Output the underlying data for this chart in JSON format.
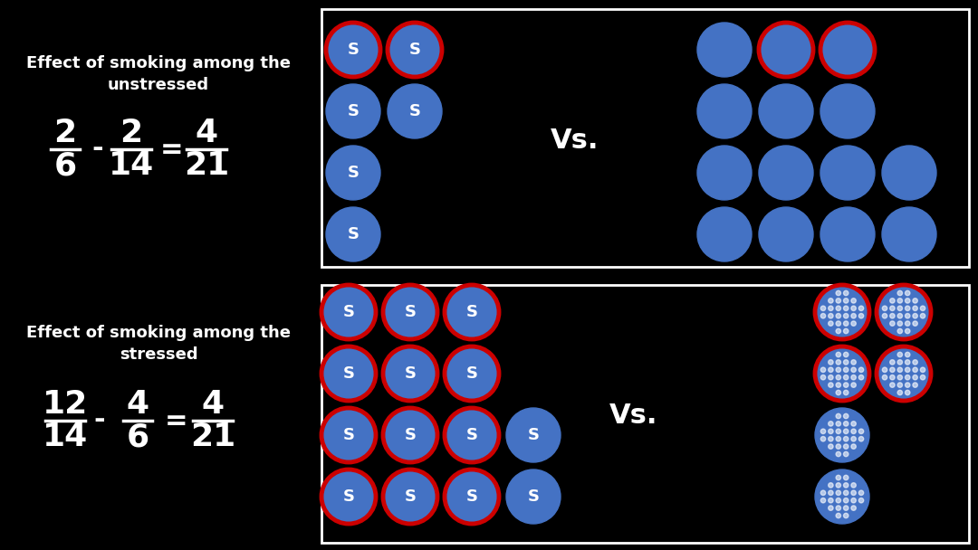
{
  "bg_color": "#000000",
  "panel_border_color": "#ffffff",
  "circle_blue": "#4472C4",
  "circle_red_outline": "#cc0000",
  "text_color": "#ffffff",
  "top_title": "Effect of smoking among the\nunstressed",
  "bottom_title": "Effect of smoking among the\nstressed",
  "vs_text": "Vs.",
  "top_left_smokers": [
    {
      "col": 0,
      "row": 0,
      "cancer": true
    },
    {
      "col": 1,
      "row": 0,
      "cancer": true
    },
    {
      "col": 0,
      "row": 1,
      "cancer": false
    },
    {
      "col": 1,
      "row": 1,
      "cancer": false
    },
    {
      "col": 0,
      "row": 2,
      "cancer": false
    },
    {
      "col": 0,
      "row": 3,
      "cancer": false
    }
  ],
  "top_right_nonsmokers": [
    {
      "col": 0,
      "row": 0,
      "cancer": false
    },
    {
      "col": 1,
      "row": 0,
      "cancer": true
    },
    {
      "col": 2,
      "row": 0,
      "cancer": true
    },
    {
      "col": 0,
      "row": 1,
      "cancer": false
    },
    {
      "col": 1,
      "row": 1,
      "cancer": false
    },
    {
      "col": 2,
      "row": 1,
      "cancer": false
    },
    {
      "col": 0,
      "row": 2,
      "cancer": false
    },
    {
      "col": 1,
      "row": 2,
      "cancer": false
    },
    {
      "col": 2,
      "row": 2,
      "cancer": false
    },
    {
      "col": 3,
      "row": 2,
      "cancer": false
    },
    {
      "col": 0,
      "row": 3,
      "cancer": false
    },
    {
      "col": 1,
      "row": 3,
      "cancer": false
    },
    {
      "col": 2,
      "row": 3,
      "cancer": false
    },
    {
      "col": 3,
      "row": 3,
      "cancer": false
    }
  ],
  "bot_left_smokers": [
    {
      "col": 0,
      "row": 0,
      "cancer": true
    },
    {
      "col": 1,
      "row": 0,
      "cancer": true
    },
    {
      "col": 2,
      "row": 0,
      "cancer": true
    },
    {
      "col": 0,
      "row": 1,
      "cancer": true
    },
    {
      "col": 1,
      "row": 1,
      "cancer": true
    },
    {
      "col": 2,
      "row": 1,
      "cancer": true
    },
    {
      "col": 0,
      "row": 2,
      "cancer": true
    },
    {
      "col": 1,
      "row": 2,
      "cancer": true
    },
    {
      "col": 2,
      "row": 2,
      "cancer": true
    },
    {
      "col": 3,
      "row": 2,
      "cancer": false
    },
    {
      "col": 0,
      "row": 3,
      "cancer": true
    },
    {
      "col": 1,
      "row": 3,
      "cancer": true
    },
    {
      "col": 2,
      "row": 3,
      "cancer": true
    },
    {
      "col": 3,
      "row": 3,
      "cancer": false
    }
  ],
  "bot_right_nonsmokers": [
    {
      "col": 0,
      "row": 0,
      "cancer": true,
      "dotted": true
    },
    {
      "col": 1,
      "row": 0,
      "cancer": true,
      "dotted": true
    },
    {
      "col": 0,
      "row": 1,
      "cancer": true,
      "dotted": true
    },
    {
      "col": 1,
      "row": 1,
      "cancer": true,
      "dotted": true
    },
    {
      "col": 0,
      "row": 2,
      "cancer": false,
      "dotted": true
    },
    {
      "col": 0,
      "row": 3,
      "cancer": false,
      "dotted": true
    }
  ],
  "top_formula": {
    "fracs": [
      [
        "2",
        "6"
      ],
      [
        "2",
        "14"
      ],
      [
        "4",
        "21"
      ]
    ],
    "ops": [
      "-",
      "="
    ]
  },
  "bot_formula": {
    "fracs": [
      [
        "12",
        "14"
      ],
      [
        "4",
        "6"
      ],
      [
        "4",
        "21"
      ]
    ],
    "ops": [
      "-",
      "="
    ]
  }
}
